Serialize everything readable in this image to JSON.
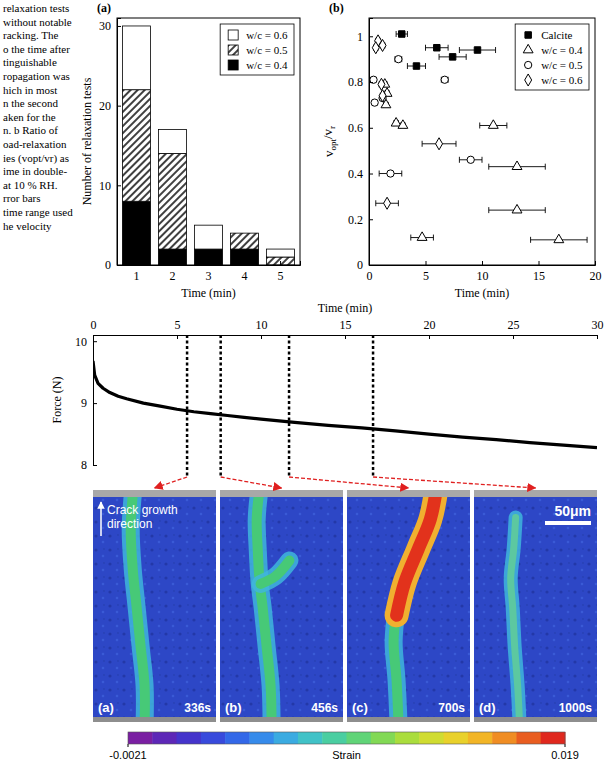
{
  "caption_fragment": [
    "relaxation tests",
    "without notable",
    "racking. The",
    "o the time after",
    "tinguishable",
    "ropagation was",
    "hich in most",
    "n the second",
    "aken for the",
    "n. b Ratio of",
    "oad-relaxation",
    "ies (vopt/vr) as",
    "ime in double-",
    "at 10 % RH.",
    "rror bars",
    "time range used",
    "he velocity"
  ],
  "chart_data": [
    {
      "type": "bar",
      "stacked": true,
      "panel_label": "(a)",
      "x_label": "Time (min)",
      "y_label": "Number of relaxation tests",
      "categories": [
        "1",
        "2",
        "3",
        "4",
        "5"
      ],
      "series": [
        {
          "name": "w/c = 0.4",
          "color": "#000000",
          "line_style": "solid",
          "values": [
            8,
            2,
            2,
            2,
            0
          ]
        },
        {
          "name": "w/c = 0.5",
          "color": "#000000",
          "line_style": "hatched",
          "values": [
            14,
            12,
            0,
            2,
            1
          ]
        },
        {
          "name": "w/c = 0.6",
          "color": "#ffffff",
          "line_style": "solid",
          "values": [
            8,
            3,
            3,
            0,
            1
          ]
        }
      ],
      "ylim": [
        0,
        31
      ],
      "yticks": [
        0,
        10,
        20,
        30
      ],
      "legend": "top-right"
    },
    {
      "type": "scatter",
      "panel_label": "(b)",
      "x_label": "Time (min)",
      "y_label": [
        "v",
        "opt",
        "/v",
        "r"
      ],
      "xlim": [
        0,
        20
      ],
      "xticks": [
        0,
        5,
        10,
        15,
        20
      ],
      "ylim": [
        0,
        1.08
      ],
      "yticks": [
        0,
        0.2,
        0.4,
        0.6,
        0.8,
        1
      ],
      "legend": "top-right",
      "series": [
        {
          "name": "Calcite",
          "color": "#000000",
          "marker": "square",
          "x": [
            2.9,
            4.2,
            6.0,
            7.4,
            9.6
          ],
          "values": [
            1.01,
            0.87,
            0.95,
            0.91,
            0.94
          ],
          "x_error": [
            0.5,
            0.8,
            1.0,
            1.2,
            1.6
          ]
        },
        {
          "name": "w/c = 0.4",
          "color": "#000000",
          "marker": "triangle-open",
          "x": [
            1.4,
            1.6,
            1.5,
            2.4,
            3.0,
            4.7,
            11.0,
            13.1,
            13.1,
            16.8
          ],
          "values": [
            0.79,
            0.75,
            0.7,
            0.62,
            0.61,
            0.12,
            0.61,
            0.43,
            0.24,
            0.11
          ],
          "x_error": [
            0.2,
            0.2,
            0.2,
            0.2,
            0.2,
            1.0,
            1.2,
            2.5,
            2.5,
            2.5
          ]
        },
        {
          "name": "w/c = 0.5",
          "color": "#000000",
          "marker": "circle-open",
          "x": [
            0.4,
            0.5,
            1.2,
            1.9,
            2.6,
            6.7,
            9.0
          ],
          "values": [
            0.81,
            0.71,
            0.73,
            0.4,
            0.9,
            0.81,
            0.46
          ],
          "x_error": [
            0.2,
            0.2,
            0.2,
            1.0,
            0.3,
            0.3,
            1.0
          ]
        },
        {
          "name": "w/c = 0.6",
          "color": "#000000",
          "marker": "diamond-open",
          "x": [
            0.8,
            0.6,
            1.2,
            1.1,
            1.2,
            1.6,
            6.2
          ],
          "values": [
            0.98,
            0.95,
            0.96,
            0.79,
            0.74,
            0.27,
            0.53
          ],
          "x_error": [
            0.2,
            0.2,
            0.2,
            0.2,
            0.2,
            1.0,
            1.5
          ]
        }
      ]
    },
    {
      "type": "line",
      "x_label": "Time (min)",
      "y_label": "Force (N)",
      "color": "#000000",
      "xlim": [
        0,
        30
      ],
      "xticks": [
        0,
        5,
        10,
        15,
        20,
        25,
        30
      ],
      "ylim": [
        8,
        10.1
      ],
      "yticks": [
        8,
        9,
        10
      ],
      "x": [
        0,
        0.1,
        0.3,
        0.6,
        1,
        1.5,
        2,
        3,
        4,
        5,
        6,
        7,
        8,
        9,
        10,
        12,
        14,
        16,
        18,
        20,
        22,
        24,
        26,
        28,
        30
      ],
      "values": [
        9.68,
        9.45,
        9.32,
        9.24,
        9.17,
        9.11,
        9.07,
        9.0,
        8.95,
        8.9,
        8.86,
        8.83,
        8.8,
        8.77,
        8.74,
        8.69,
        8.64,
        8.6,
        8.55,
        8.5,
        8.45,
        8.41,
        8.36,
        8.32,
        8.28
      ],
      "snapshot_times": [
        5.6,
        7.6,
        11.67,
        16.67
      ]
    }
  ],
  "images": {
    "panels": [
      {
        "label": "(a)",
        "time": "336s"
      },
      {
        "label": "(b)",
        "time": "456s"
      },
      {
        "label": "(c)",
        "time": "700s"
      },
      {
        "label": "(d)",
        "time": "1000s"
      }
    ],
    "annotation": "Crack growth direction",
    "scale_bar": "50μm",
    "colorbar": {
      "label": "Strain",
      "range": [
        -0.0021,
        0.019
      ],
      "ticks": [
        -0.0021,
        0.019
      ]
    }
  }
}
